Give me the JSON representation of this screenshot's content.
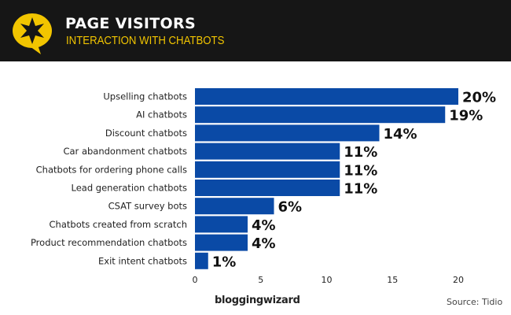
{
  "header": {
    "title": "PAGE VISITORS",
    "subtitle": "INTERACTION WITH CHATBOTS",
    "accent": "#f2c500",
    "background": "#161616"
  },
  "chart_data": {
    "type": "bar",
    "orientation": "horizontal",
    "categories": [
      "Upselling chatbots",
      "AI chatbots",
      "Discount chatbots",
      "Car abandonment chatbots",
      "Chatbots for ordering phone calls",
      "Lead generation chatbots",
      "CSAT survey bots",
      "Chatbots created from scratch",
      "Product recommendation chatbots",
      "Exit intent chatbots"
    ],
    "values": [
      20,
      19,
      14,
      11,
      11,
      11,
      6,
      4,
      4,
      1
    ],
    "data_labels": [
      "20%",
      "19%",
      "14%",
      "11%",
      "11%",
      "11%",
      "6%",
      "4%",
      "4%",
      "1%"
    ],
    "xlim": [
      0,
      20
    ],
    "xticks": [
      0,
      5,
      10,
      15,
      20
    ],
    "grid": false,
    "bar_color": "#0a4aa6"
  },
  "footer": {
    "brand": "bloggingwizard",
    "source": "Source:  Tidio"
  }
}
